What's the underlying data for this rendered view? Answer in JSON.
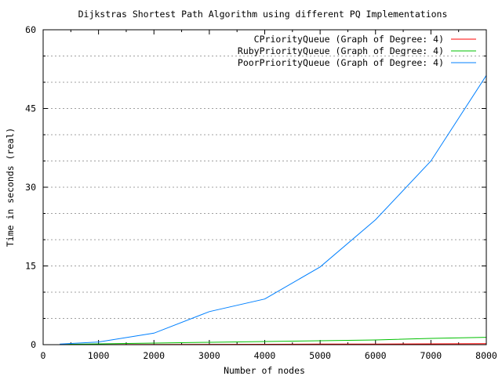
{
  "chart_data": {
    "type": "line",
    "title": "Dijkstras Shortest Path Algorithm using different PQ Implementations",
    "xlabel": "Number of nodes",
    "ylabel": "Time in seconds (real)",
    "xlim": [
      0,
      8000
    ],
    "ylim": [
      0,
      60
    ],
    "x_ticks": [
      0,
      1000,
      2000,
      3000,
      4000,
      5000,
      6000,
      7000,
      8000
    ],
    "y_ticks": [
      0,
      15,
      30,
      45,
      60
    ],
    "y_minor_grid": [
      5,
      10,
      20,
      25,
      35,
      40,
      50,
      55
    ],
    "grid": true,
    "legend_position": "top-right",
    "x": [
      300,
      1000,
      2000,
      3000,
      4000,
      5000,
      6000,
      7000,
      8000
    ],
    "series": [
      {
        "name": "CPriorityQueue (Graph of Degree: 4)",
        "color": "#ff0000",
        "values": [
          0.01,
          0.02,
          0.04,
          0.06,
          0.08,
          0.1,
          0.12,
          0.15,
          0.2
        ]
      },
      {
        "name": "RubyPriorityQueue (Graph of Degree: 4)",
        "color": "#00c000",
        "values": [
          0.05,
          0.15,
          0.3,
          0.45,
          0.6,
          0.75,
          0.9,
          1.2,
          1.4
        ]
      },
      {
        "name": "PoorPriorityQueue (Graph of Degree: 4)",
        "color": "#0080ff",
        "values": [
          0.1,
          0.5,
          2.2,
          6.3,
          8.7,
          14.8,
          23.8,
          35.0,
          51.3
        ]
      }
    ]
  }
}
